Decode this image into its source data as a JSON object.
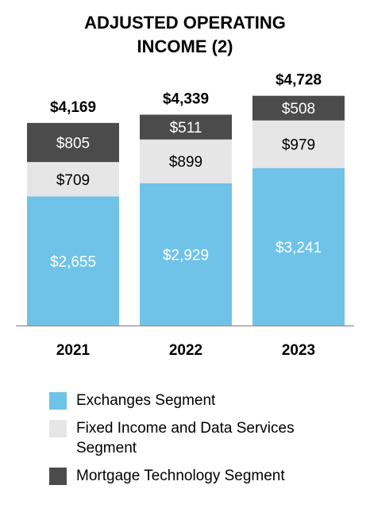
{
  "chart_data": {
    "type": "bar",
    "stacked": true,
    "title": "ADJUSTED OPERATING INCOME (2)",
    "title_lines": [
      "ADJUSTED OPERATING",
      "INCOME (2)"
    ],
    "categories": [
      "2021",
      "2022",
      "2023"
    ],
    "series": [
      {
        "name": "Exchanges Segment",
        "values": [
          2655,
          2929,
          3241
        ],
        "labels": [
          "$2,655",
          "$2,929",
          "$3,241"
        ],
        "color": "#6fc3e8",
        "label_color": "#ffffff"
      },
      {
        "name": "Fixed Income and Data Services\n Segment",
        "values": [
          709,
          899,
          979
        ],
        "labels": [
          "$709",
          "$899",
          "$979"
        ],
        "color": "#e6e6e6",
        "label_color": "#000000"
      },
      {
        "name": "Mortgage Technology Segment",
        "values": [
          805,
          511,
          508
        ],
        "labels": [
          "$805",
          "$511",
          "$508"
        ],
        "color": "#4b4b4b",
        "label_color": "#ffffff"
      }
    ],
    "totals": [
      4169,
      4339,
      4728
    ],
    "total_labels": [
      "$4,169",
      "$4,339",
      "$4,728"
    ],
    "ylim": [
      0,
      5000
    ],
    "grid": false,
    "legend_position": "bottom"
  }
}
